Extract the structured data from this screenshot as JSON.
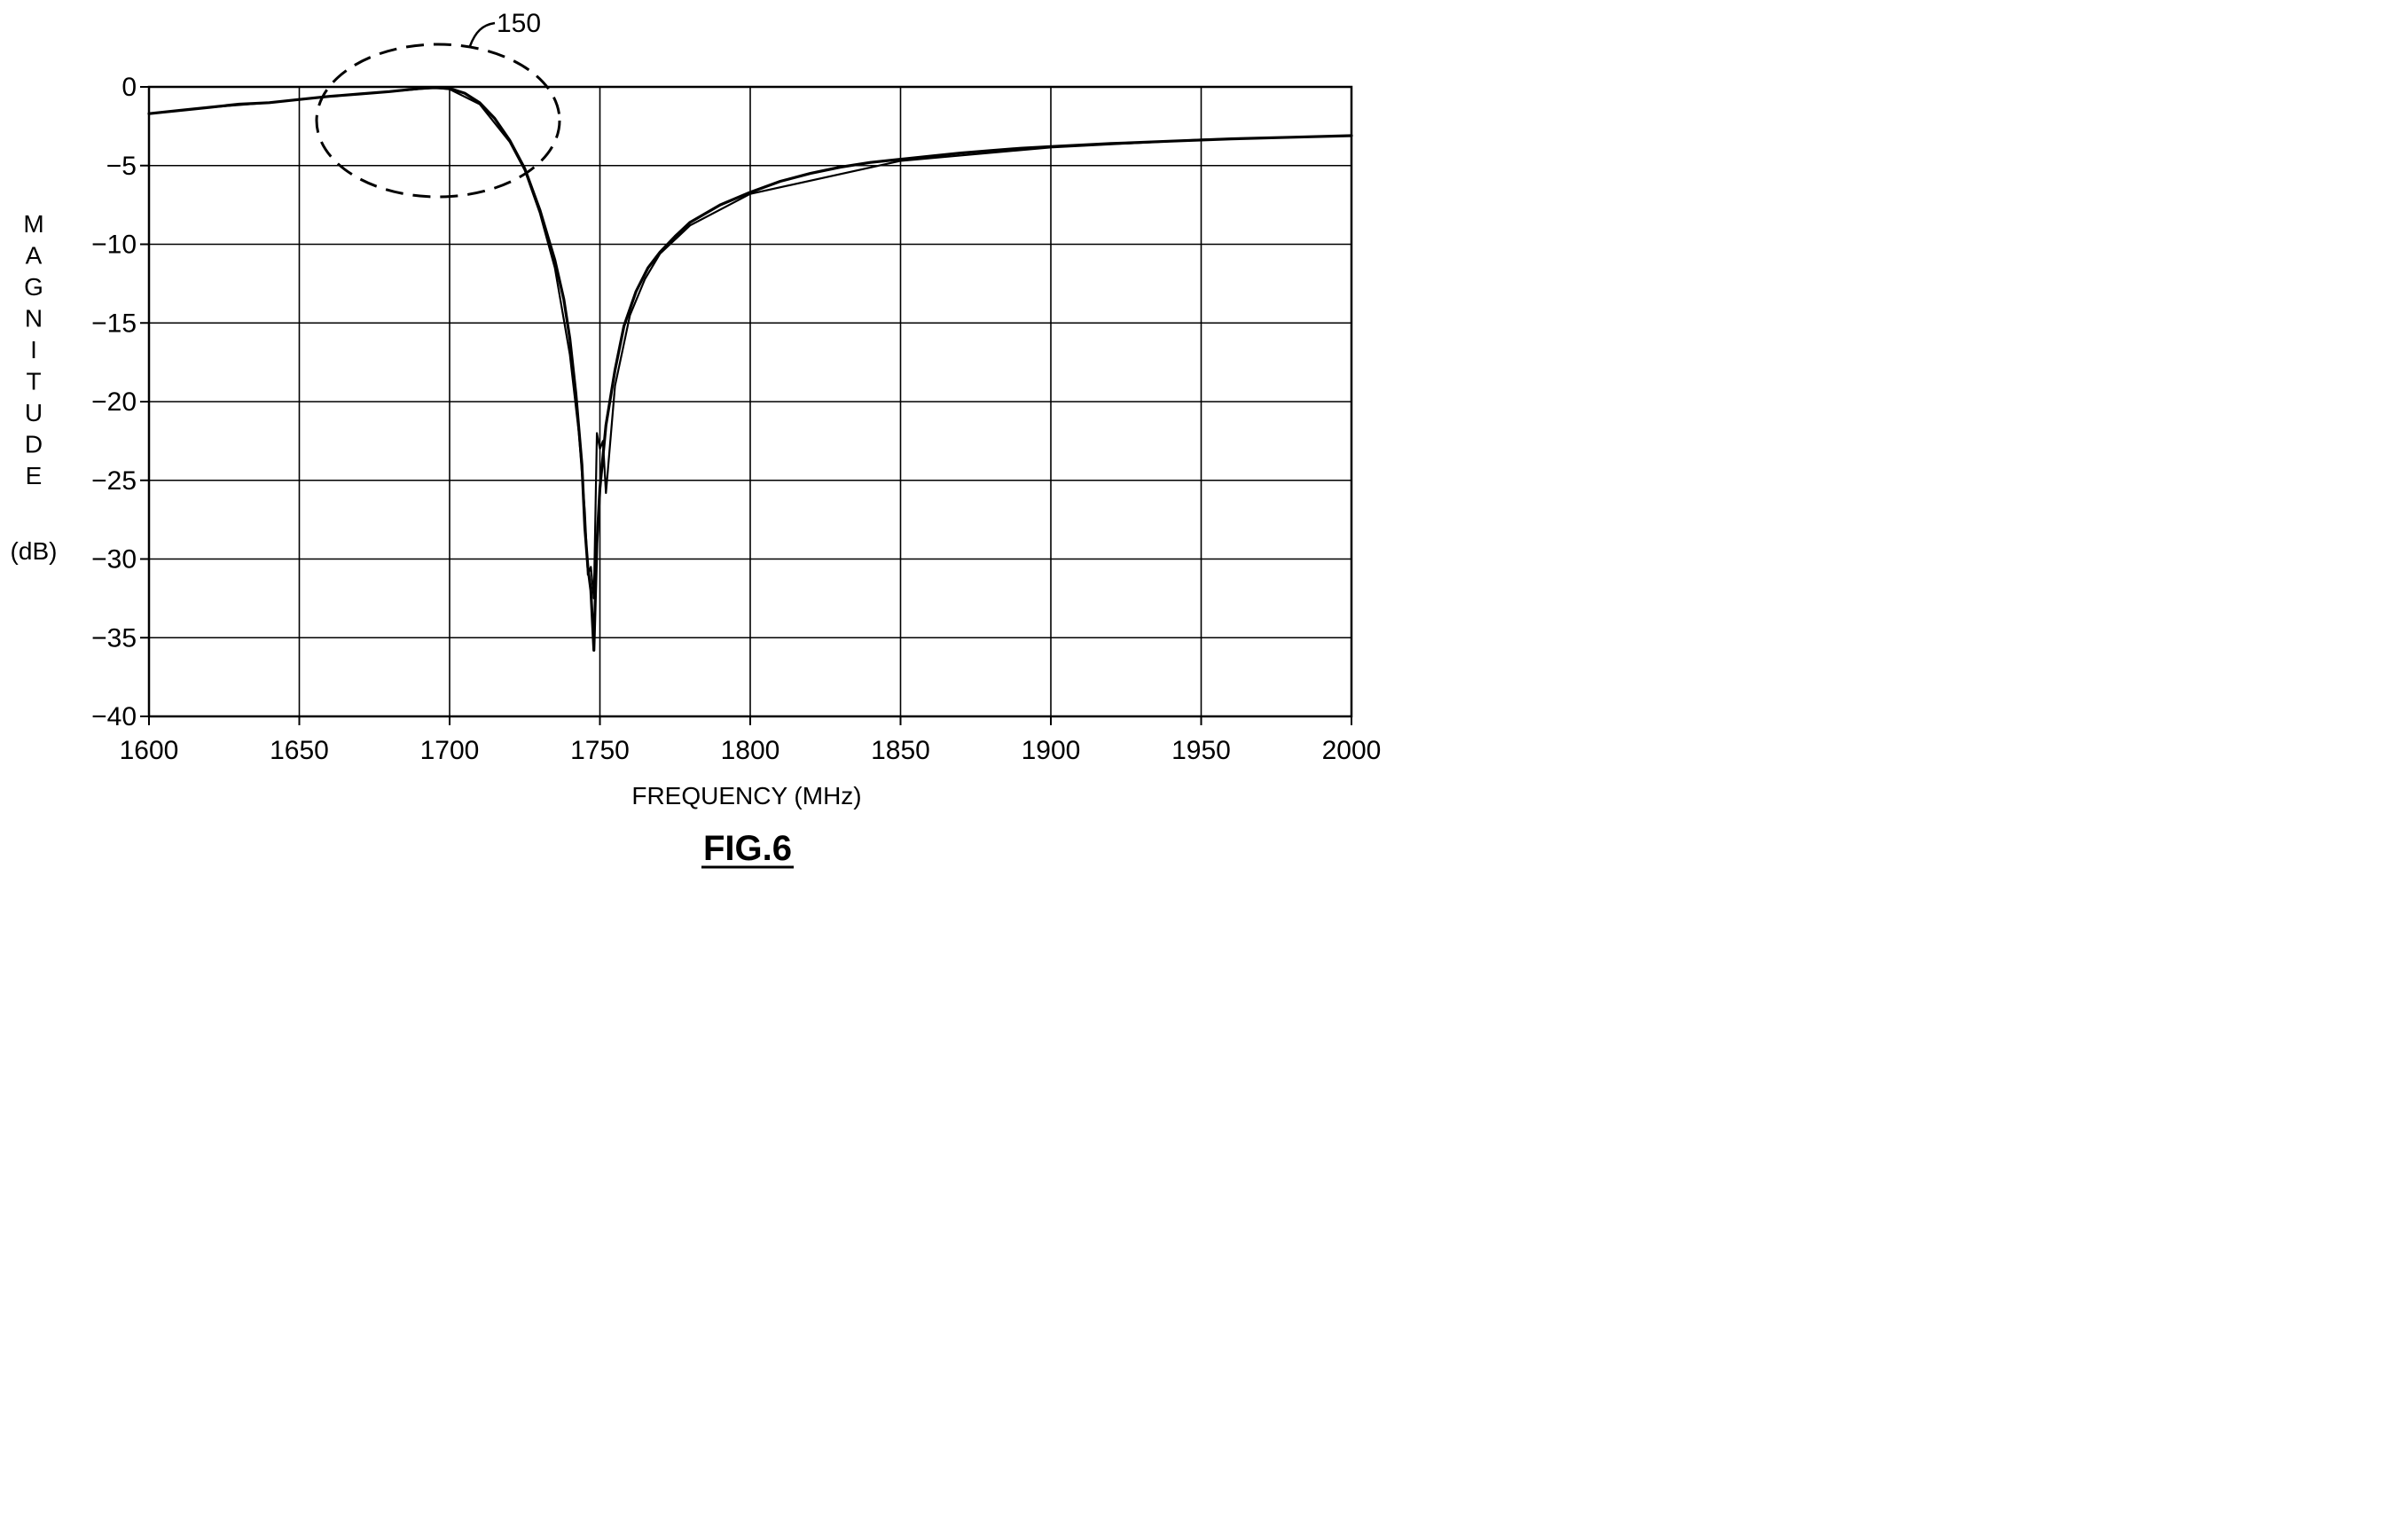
{
  "figure_label": "FIG.6",
  "chart_data": {
    "type": "line",
    "title": "",
    "xlabel": "FREQUENCY (MHz)",
    "ylabel": "MAGNITUDE",
    "ylabel_unit": "(dB)",
    "xlim": [
      1600,
      2000
    ],
    "ylim": [
      -40,
      0
    ],
    "xticks": [
      1600,
      1650,
      1700,
      1750,
      1800,
      1850,
      1900,
      1950,
      2000
    ],
    "yticks": [
      0,
      -5,
      -10,
      -15,
      -20,
      -25,
      -30,
      -35,
      -40
    ],
    "ytick_labels": [
      "0",
      "−5",
      "−10",
      "−15",
      "−20",
      "−25",
      "−30",
      "−35",
      "−40"
    ],
    "grid": true,
    "legend": "none",
    "line_color": "#000000",
    "series": [
      {
        "x": [
          1600,
          1610,
          1620,
          1630,
          1640,
          1650,
          1660,
          1670,
          1680,
          1690,
          1695,
          1700,
          1705,
          1710,
          1715,
          1720,
          1725,
          1730,
          1735,
          1738,
          1740,
          1742,
          1744,
          1745,
          1746,
          1747,
          1748,
          1749,
          1750,
          1752,
          1755,
          1758,
          1762,
          1766,
          1770,
          1775,
          1780,
          1790,
          1800,
          1810,
          1820,
          1830,
          1840,
          1850,
          1860,
          1870,
          1880,
          1890,
          1900,
          1920,
          1940,
          1960,
          1980,
          2000
        ],
        "y": [
          -1.7,
          -1.5,
          -1.3,
          -1.1,
          -1.0,
          -0.8,
          -0.6,
          -0.45,
          -0.3,
          -0.1,
          -0.05,
          -0.1,
          -0.4,
          -1.0,
          -2.0,
          -3.4,
          -5.2,
          -7.8,
          -11.0,
          -13.5,
          -16.0,
          -19.5,
          -24.0,
          -28.0,
          -30.5,
          -32.0,
          -35.8,
          -29.0,
          -25.5,
          -21.5,
          -18.0,
          -15.2,
          -13.0,
          -11.5,
          -10.5,
          -9.5,
          -8.6,
          -7.5,
          -6.7,
          -6.0,
          -5.5,
          -5.1,
          -4.8,
          -4.6,
          -4.4,
          -4.2,
          -4.05,
          -3.9,
          -3.8,
          -3.6,
          -3.45,
          -3.3,
          -3.2,
          -3.1
        ]
      },
      {
        "x": [
          1600,
          1620,
          1640,
          1660,
          1680,
          1695,
          1700,
          1710,
          1720,
          1725,
          1730,
          1735,
          1740,
          1743,
          1745,
          1746,
          1747,
          1748,
          1749,
          1750,
          1751,
          1752,
          1755,
          1760,
          1765,
          1770,
          1780,
          1800,
          1850,
          1900,
          1950,
          2000
        ],
        "y": [
          -1.7,
          -1.3,
          -1.0,
          -0.6,
          -0.3,
          -0.05,
          -0.15,
          -1.1,
          -3.5,
          -5.3,
          -8.0,
          -11.5,
          -17.0,
          -22.0,
          -27.0,
          -31.0,
          -30.5,
          -32.5,
          -22.0,
          -23.0,
          -22.5,
          -25.8,
          -19.0,
          -14.5,
          -12.2,
          -10.6,
          -8.8,
          -6.8,
          -4.7,
          -3.85,
          -3.35,
          -3.1
        ]
      }
    ],
    "annotations": [
      {
        "text": "150",
        "target_x": 1695,
        "target_y": -2
      }
    ]
  }
}
